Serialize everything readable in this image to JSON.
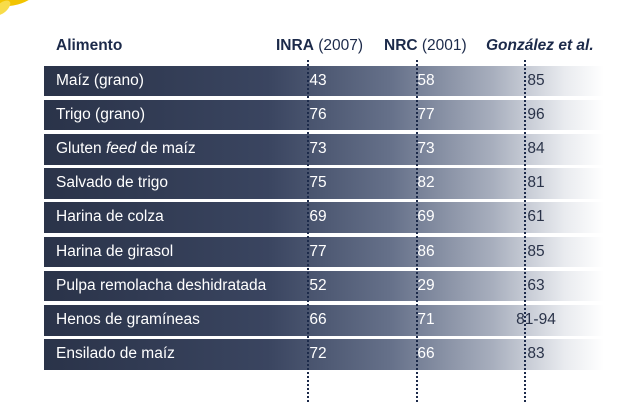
{
  "table": {
    "headers": [
      {
        "bold": "Alimento",
        "rest": ""
      },
      {
        "bold": "INRA",
        "rest": " (2007)"
      },
      {
        "bold": "NRC",
        "rest": " (2001)"
      },
      {
        "bold": "González et al.",
        "rest": ""
      }
    ],
    "rows": [
      {
        "name": "Maíz (grano)",
        "inra": "43",
        "nrc": "58",
        "gonzalez": "85"
      },
      {
        "name": "Trigo (grano)",
        "inra": "76",
        "nrc": "77",
        "gonzalez": "96"
      },
      {
        "name_pre": "Gluten ",
        "name_italic": "feed",
        "name_post": " de maíz",
        "inra": "73",
        "nrc": "73",
        "gonzalez": "84"
      },
      {
        "name": "Salvado de trigo",
        "inra": "75",
        "nrc": "82",
        "gonzalez": "81"
      },
      {
        "name": "Harina de colza",
        "inra": "69",
        "nrc": "69",
        "gonzalez": "61"
      },
      {
        "name": "Harina de girasol",
        "inra": "77",
        "nrc": "86",
        "gonzalez": "85"
      },
      {
        "name": "Pulpa remolacha deshidratada",
        "inra": "52",
        "nrc": "29",
        "gonzalez": "63"
      },
      {
        "name": "Henos de gramíneas",
        "inra": "66",
        "nrc": "71",
        "gonzalez": "81-94"
      },
      {
        "name": "Ensilado de maíz",
        "inra": "72",
        "nrc": "66",
        "gonzalez": "83"
      }
    ]
  },
  "decor": {
    "flower_color": "#f2c400"
  }
}
